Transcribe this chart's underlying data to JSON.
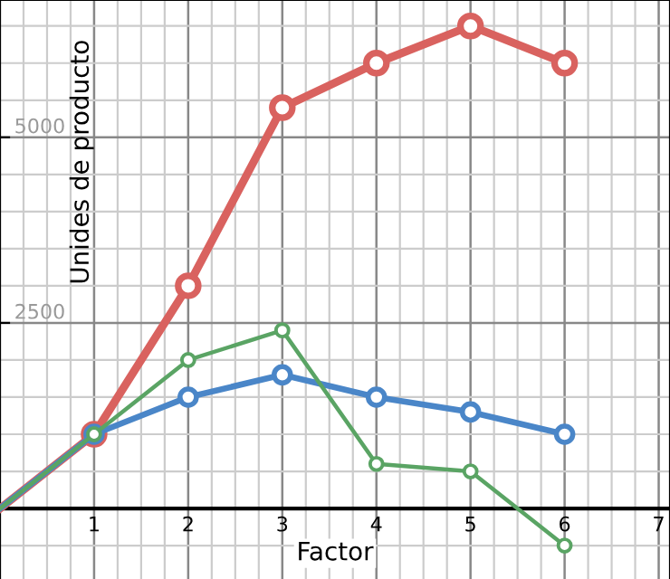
{
  "chart_data": {
    "type": "line",
    "xlabel": "Factor",
    "ylabel": "Unides de producto",
    "xlim": [
      0,
      7.12
    ],
    "ylim": [
      -950,
      6850
    ],
    "xticks": [
      1,
      2,
      3,
      4,
      5,
      6,
      7
    ],
    "yticks": [
      2500,
      5000
    ],
    "grid": true,
    "marker": "circle",
    "legend": false,
    "series": [
      {
        "color": "#d9625f",
        "x": [
          0,
          1,
          2,
          3,
          4,
          5,
          6
        ],
        "values": [
          0,
          1000,
          3000,
          5400,
          6000,
          6500,
          6000
        ]
      },
      {
        "color": "#4a86c8",
        "x": [
          0,
          1,
          2,
          3,
          4,
          5,
          6
        ],
        "values": [
          0,
          1000,
          1500,
          1800,
          1500,
          1300,
          1000
        ]
      },
      {
        "color": "#5aa464",
        "x": [
          0,
          1,
          2,
          3,
          4,
          5,
          6
        ],
        "values": [
          0,
          1000,
          2000,
          2400,
          600,
          500,
          -500
        ]
      }
    ]
  }
}
